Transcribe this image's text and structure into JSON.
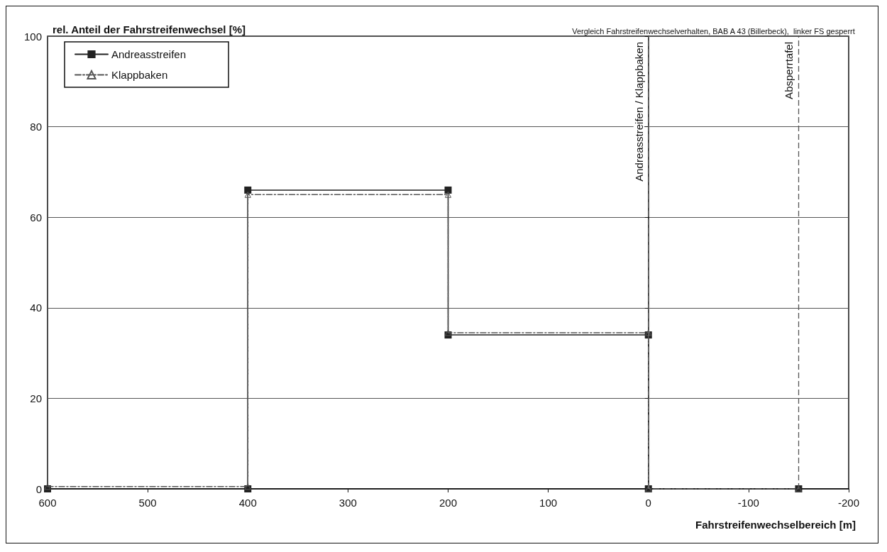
{
  "chart_data": {
    "type": "line",
    "title": "Vergleich Fahrstreifenwechselverhalten, BAB A 43 (Billerbeck),  linker FS gesperrt",
    "xlabel": "Fahrstreifenwechselbereich [m]",
    "ylabel": "rel. Anteil der Fahrstreifenwechsel [%]",
    "series": [
      {
        "name": "Andreasstreifen",
        "color": "#222222",
        "marker": "square",
        "line_style": "solid",
        "x": [
          600,
          400,
          400,
          200,
          200,
          0,
          0,
          -150
        ],
        "values": [
          0,
          0,
          66,
          66,
          34,
          34,
          0,
          0
        ]
      },
      {
        "name": "Klappbaken",
        "color": "#555555",
        "marker": "triangle",
        "line_style": "dashed",
        "x": [
          600,
          400,
          400,
          200,
          200,
          0,
          0,
          -150
        ],
        "values": [
          0.5,
          0.5,
          65,
          65,
          34.5,
          34.5,
          0,
          0
        ]
      }
    ],
    "xlim": [
      600,
      -200
    ],
    "xticks": [
      600,
      500,
      400,
      300,
      200,
      100,
      0,
      -100,
      -200
    ],
    "ylim": [
      0,
      100
    ],
    "yticks": [
      0,
      20,
      40,
      60,
      80,
      100
    ],
    "ref_lines": [
      {
        "axis": "x",
        "value": 0,
        "label": "Andreasstreifen / Klappbaken",
        "color": "#777777",
        "line_style": "dashed"
      },
      {
        "axis": "x",
        "value": -150,
        "label": "Absperrtafel",
        "color": "#555555",
        "line_style": "dashed"
      }
    ],
    "grid": "y",
    "legend": "top left"
  }
}
